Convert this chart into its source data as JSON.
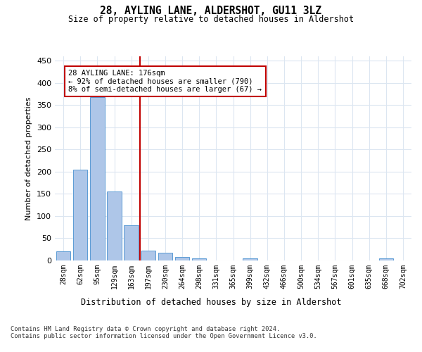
{
  "title": "28, AYLING LANE, ALDERSHOT, GU11 3LZ",
  "subtitle": "Size of property relative to detached houses in Aldershot",
  "xlabel": "Distribution of detached houses by size in Aldershot",
  "ylabel": "Number of detached properties",
  "bar_labels": [
    "28sqm",
    "62sqm",
    "95sqm",
    "129sqm",
    "163sqm",
    "197sqm",
    "230sqm",
    "264sqm",
    "298sqm",
    "331sqm",
    "365sqm",
    "399sqm",
    "432sqm",
    "466sqm",
    "500sqm",
    "534sqm",
    "567sqm",
    "601sqm",
    "635sqm",
    "668sqm",
    "702sqm"
  ],
  "bar_values": [
    20,
    204,
    368,
    155,
    79,
    23,
    17,
    8,
    5,
    0,
    0,
    5,
    0,
    0,
    0,
    0,
    0,
    0,
    0,
    4,
    0
  ],
  "bar_color": "#aec6e8",
  "bar_edge_color": "#5b9bd5",
  "property_line_x": 4.5,
  "property_line_label": "28 AYLING LANE: 176sqm",
  "annotation_line1": "← 92% of detached houses are smaller (790)",
  "annotation_line2": "8% of semi-detached houses are larger (67) →",
  "line_color": "#c00000",
  "annotation_box_color": "#c00000",
  "ylim": [
    0,
    460
  ],
  "yticks": [
    0,
    50,
    100,
    150,
    200,
    250,
    300,
    350,
    400,
    450
  ],
  "footer": "Contains HM Land Registry data © Crown copyright and database right 2024.\nContains public sector information licensed under the Open Government Licence v3.0.",
  "bg_color": "#ffffff",
  "grid_color": "#dce6f1"
}
